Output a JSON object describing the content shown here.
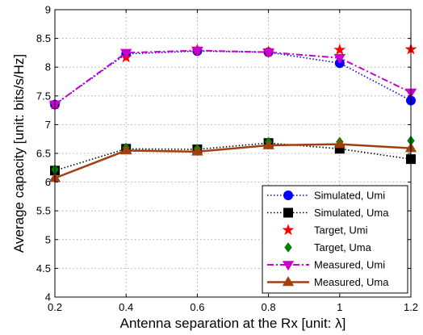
{
  "chart_data": {
    "type": "line",
    "xlabel": "Antenna separation at the Rx [unit: λ]",
    "ylabel": "Average capacity [unit: bits/s/Hz]",
    "xlim": [
      0.2,
      1.2
    ],
    "ylim": [
      4,
      9
    ],
    "xticks": [
      "0.2",
      "0.4",
      "0.6",
      "0.8",
      "1",
      "1.2"
    ],
    "yticks": [
      "4",
      "4.5",
      "5",
      "5.5",
      "6",
      "6.5",
      "7",
      "7.5",
      "8",
      "8.5",
      "9"
    ],
    "grid": true,
    "legend_position": "bottom-right",
    "x": [
      0.2,
      0.4,
      0.6,
      0.8,
      1.0,
      1.2
    ],
    "series": [
      {
        "name": "Simulated, Umi",
        "values": [
          7.35,
          8.23,
          8.28,
          8.26,
          8.07,
          7.42
        ],
        "color": "#0000ff",
        "line": "dotted",
        "marker": "circle"
      },
      {
        "name": "Simulated, Uma",
        "values": [
          6.2,
          6.58,
          6.57,
          6.68,
          6.58,
          6.4
        ],
        "color": "#000000",
        "line": "dotted",
        "marker": "square"
      },
      {
        "name": "Target, Umi",
        "values": [
          7.35,
          8.17,
          8.3,
          8.27,
          8.3,
          8.31
        ],
        "color": "#ff0000",
        "line": "none",
        "marker": "star"
      },
      {
        "name": "Target, Uma",
        "values": [
          6.22,
          6.6,
          6.58,
          6.7,
          6.7,
          6.72
        ],
        "color": "#008000",
        "line": "none",
        "marker": "diamond"
      },
      {
        "name": "Measured, Umi",
        "values": [
          7.35,
          8.25,
          8.29,
          8.26,
          8.16,
          7.56
        ],
        "color": "#cc00cc",
        "line": "dashdot",
        "marker": "triangle-down"
      },
      {
        "name": "Measured, Uma",
        "values": [
          6.07,
          6.55,
          6.53,
          6.64,
          6.66,
          6.59
        ],
        "color": "#a0400f",
        "line": "solid",
        "marker": "triangle-up"
      }
    ]
  }
}
